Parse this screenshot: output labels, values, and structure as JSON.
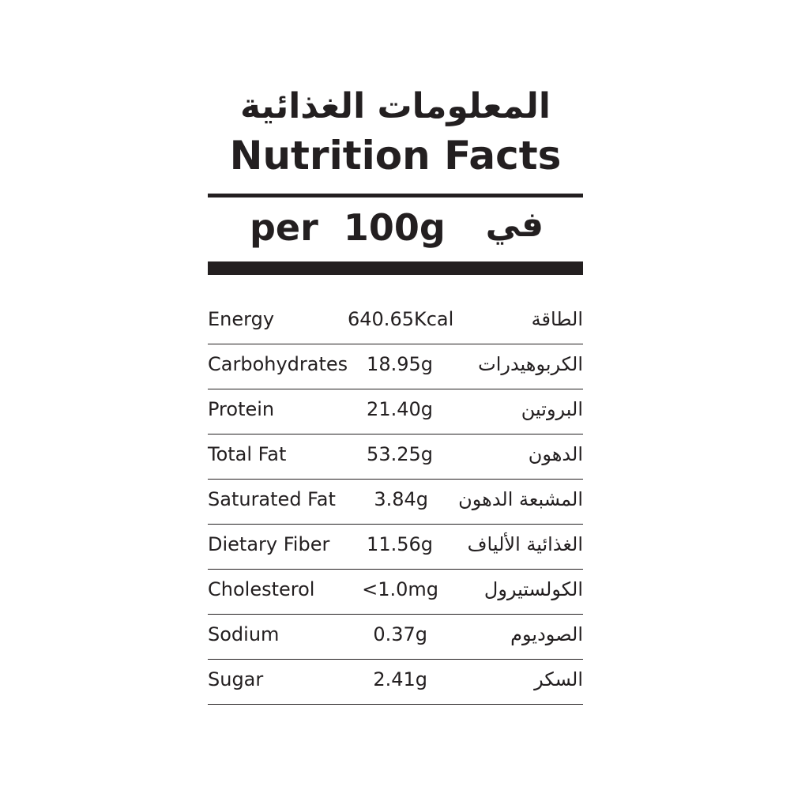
{
  "header": {
    "title_ar": "المعلومات الغذائية",
    "title_en": "Nutrition Facts",
    "serving_en": "per  100g",
    "serving_ar": "في"
  },
  "rows": [
    {
      "label": "Energy",
      "value": "640.65Kcal",
      "label_ar": "الطاقة"
    },
    {
      "label": "Carbohydrates",
      "value": "18.95g",
      "label_ar": "الكربوهيدرات"
    },
    {
      "label": "Protein",
      "value": "21.40g",
      "label_ar": "البروتين"
    },
    {
      "label": "Total Fat",
      "value": "53.25g",
      "label_ar": "الدهون"
    },
    {
      "label": "Saturated Fat",
      "value": "3.84g",
      "label_ar": "المشبعة الدهون"
    },
    {
      "label": "Dietary Fiber",
      "value": "11.56g",
      "label_ar": "الغذائية الألياف"
    },
    {
      "label": "Cholesterol",
      "value": "<1.0mg",
      "label_ar": "الكولستيرول"
    },
    {
      "label": "Sodium",
      "value": "0.37g",
      "label_ar": "الصوديوم"
    },
    {
      "label": "Sugar",
      "value": "2.41g",
      "label_ar": "السكر"
    }
  ]
}
